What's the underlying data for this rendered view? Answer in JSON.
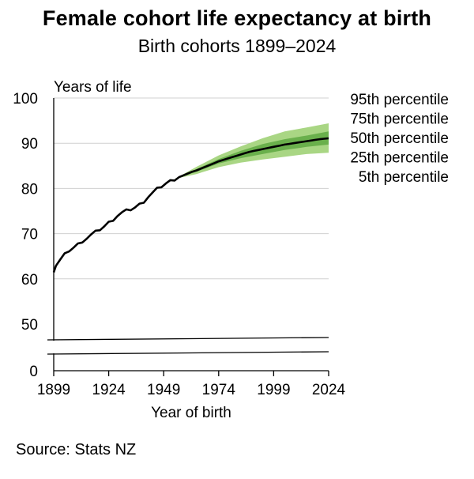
{
  "title": "Female cohort life expectancy at birth",
  "subtitle": "Birth cohorts 1899–2024",
  "source": "Source: Stats NZ",
  "colors": {
    "outer_band": "#a9d684",
    "inner_band": "#6ab04c",
    "median_line": "#000000",
    "grid": "#d0d0d0"
  },
  "chart_data": {
    "type": "line",
    "title": "Female cohort life expectancy at birth",
    "subtitle": "Birth cohorts 1899–2024",
    "xlabel": "Year of birth",
    "ylabel": "Years of life",
    "xlim": [
      1899,
      2024
    ],
    "ylim_upper": [
      50,
      100
    ],
    "broken_axis": true,
    "axis_break_between": [
      0,
      50
    ],
    "x_ticks": [
      "1899",
      "1924",
      "1949",
      "1974",
      "1999",
      "2024"
    ],
    "y_ticks": [
      "100",
      "90",
      "80",
      "70",
      "60",
      "50",
      "0"
    ],
    "legend": [
      "95th percentile",
      "75th percentile",
      "50th percentile",
      "25th percentile",
      "5th percentile"
    ],
    "legend_position": "right",
    "series": [
      {
        "name": "50th percentile",
        "x": [
          1899,
          1900,
          1902,
          1904,
          1906,
          1908,
          1910,
          1912,
          1914,
          1916,
          1918,
          1920,
          1922,
          1924,
          1926,
          1928,
          1930,
          1932,
          1934,
          1936,
          1938,
          1940,
          1942,
          1944,
          1946,
          1948,
          1950,
          1952,
          1954,
          1956,
          1958,
          1960,
          1962,
          1964,
          1966,
          1968,
          1970,
          1972,
          1974,
          1976,
          1978,
          1980,
          1982,
          1984,
          1986,
          1988,
          1990,
          1992,
          1994,
          1996,
          1998,
          2000,
          2002,
          2004,
          2006,
          2008,
          2010,
          2012,
          2014,
          2016,
          2018,
          2020,
          2022,
          2024
        ],
        "y": [
          61.8,
          63.0,
          64.2,
          65.3,
          66.3,
          66.9,
          67.6,
          68.4,
          69.0,
          69.7,
          70.3,
          71.0,
          71.6,
          72.4,
          73.2,
          74.0,
          74.6,
          75.0,
          75.4,
          75.8,
          76.4,
          77.2,
          78.2,
          79.0,
          79.8,
          80.5,
          81.1,
          81.6,
          82.1,
          82.5,
          82.9,
          83.3,
          83.7,
          84.0,
          84.4,
          84.8,
          85.2,
          85.6,
          86.0,
          86.3,
          86.6,
          86.9,
          87.2,
          87.5,
          87.8,
          88.1,
          88.3,
          88.5,
          88.7,
          88.9,
          89.1,
          89.3,
          89.5,
          89.7,
          89.85,
          90.0,
          90.15,
          90.3,
          90.45,
          90.6,
          90.75,
          90.9,
          91.0,
          91.1
        ]
      },
      {
        "name": "25th/75th percentile",
        "x": [
          1954,
          1964,
          1974,
          1984,
          1994,
          2004,
          2014,
          2024
        ],
        "lower": [
          82.1,
          83.7,
          85.5,
          86.7,
          87.6,
          88.5,
          89.2,
          89.7
        ],
        "upper": [
          82.1,
          84.3,
          86.5,
          88.3,
          89.8,
          90.9,
          91.7,
          92.6
        ]
      },
      {
        "name": "5th/95th percentile",
        "x": [
          1954,
          1964,
          1974,
          1984,
          1994,
          2004,
          2014,
          2024
        ],
        "lower": [
          82.1,
          83.2,
          84.7,
          85.7,
          86.4,
          87.0,
          87.6,
          87.9
        ],
        "upper": [
          82.1,
          84.8,
          87.3,
          89.3,
          91.1,
          92.6,
          93.5,
          94.4
        ]
      }
    ]
  }
}
